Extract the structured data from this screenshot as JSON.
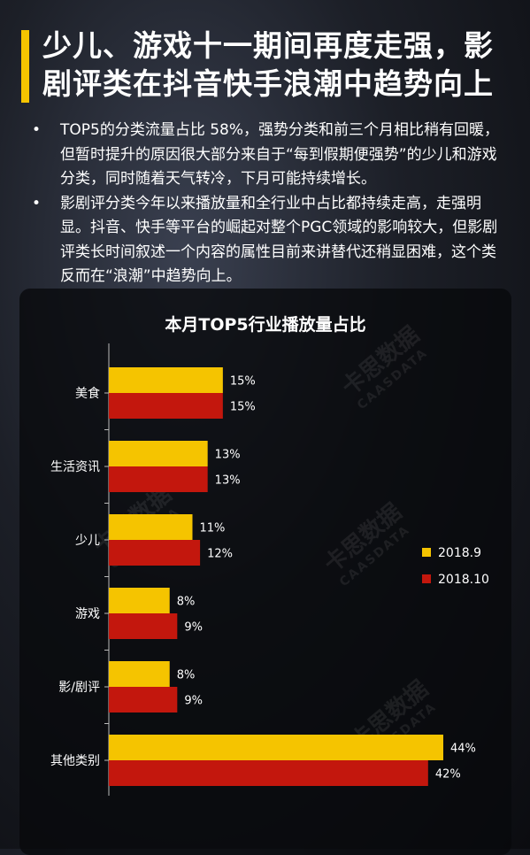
{
  "page": {
    "title_line1": "少儿、游戏十一期间再度走强，影",
    "title_line2": "剧评类在抖音快手浪潮中趋势向上",
    "bullets": [
      "TOP5的分类流量占比 58%，强势分类和前三个月相比稍有回暖，但暂时提升的原因很大部分来自于“每到假期便强势”的少儿和游戏分类，同时随着天气转冷，下月可能持续增长。",
      "影剧评分类今年以来播放量和全行业中占比都持续走高，走强明显。抖音、快手等平台的崛起对整个PGC领域的影响较大，但影剧评类长时间叙述一个内容的属性目前来讲替代还稍显困难，这个类反而在“浪潮”中趋势向上。"
    ],
    "watermark": {
      "cn": "卡思数据",
      "en": "CAASDATA"
    }
  },
  "chart_data": {
    "type": "bar",
    "orientation": "horizontal",
    "title": "本月TOP5行业播放量占比",
    "categories": [
      "美食",
      "生活资讯",
      "少儿",
      "游戏",
      "影/剧评",
      "其他类别"
    ],
    "series": [
      {
        "name": "2018.9",
        "values": [
          15,
          13,
          11,
          8,
          8,
          44
        ],
        "labels": [
          "15%",
          "13%",
          "11%",
          "8%",
          "8%",
          "44%"
        ],
        "color": "#f5c400"
      },
      {
        "name": "2018.10",
        "values": [
          15,
          13,
          12,
          9,
          9,
          42
        ],
        "labels": [
          "15%",
          "13%",
          "12%",
          "9%",
          "9%",
          "42%"
        ],
        "color": "#c3170d"
      }
    ],
    "xlim": [
      0,
      44
    ],
    "grid": false,
    "legend_position": "right"
  }
}
